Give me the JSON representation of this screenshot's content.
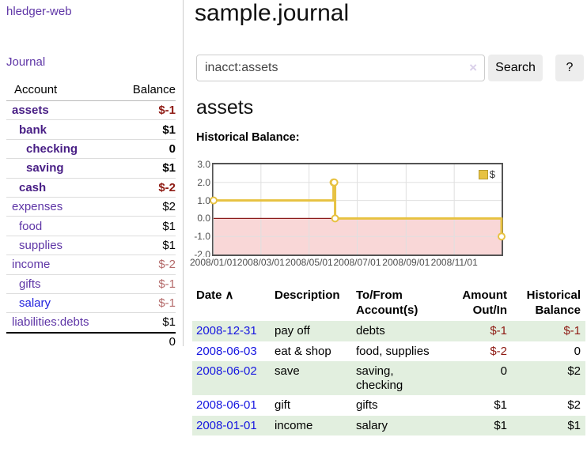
{
  "app_title": "hledger-web",
  "sidebar": {
    "journal_link": "Journal",
    "accounts": {
      "headers": {
        "account": "Account",
        "balance": "Balance"
      },
      "rows": [
        {
          "name": "assets",
          "balance": "$-1",
          "indent": 0,
          "bold": true,
          "value_class": "neg"
        },
        {
          "name": "bank",
          "balance": "$1",
          "indent": 1,
          "bold": true,
          "value_class": "pos"
        },
        {
          "name": "checking",
          "balance": "0",
          "indent": 2,
          "bold": true,
          "value_class": "pos"
        },
        {
          "name": "saving",
          "balance": "$1",
          "indent": 2,
          "bold": true,
          "value_class": "pos"
        },
        {
          "name": "cash",
          "balance": "$-2",
          "indent": 1,
          "bold": true,
          "value_class": "neg"
        },
        {
          "name": "expenses",
          "balance": "$2",
          "indent": 0,
          "bold": false,
          "value_class": "pos"
        },
        {
          "name": "food",
          "balance": "$1",
          "indent": 1,
          "bold": false,
          "value_class": "pos"
        },
        {
          "name": "supplies",
          "balance": "$1",
          "indent": 1,
          "bold": false,
          "value_class": "pos"
        },
        {
          "name": "income",
          "balance": "$-2",
          "indent": 0,
          "bold": false,
          "value_class": "rose"
        },
        {
          "name": "gifts",
          "balance": "$-1",
          "indent": 1,
          "bold": false,
          "value_class": "rose"
        },
        {
          "name": "salary",
          "balance": "$-1",
          "indent": 1,
          "bold": false,
          "value_class": "rose",
          "name_class": "blue"
        },
        {
          "name": "liabilities:debts",
          "balance": "$1",
          "indent": 0,
          "bold": false,
          "value_class": "pos"
        }
      ],
      "total": "0"
    }
  },
  "main": {
    "title": "sample.journal",
    "search": {
      "value": "inacct:assets",
      "clear_icon": "×",
      "search_button": "Search",
      "help_button": "?"
    },
    "account_heading": "assets",
    "chart_heading": "Historical Balance:"
  },
  "chart_data": {
    "type": "line",
    "step": true,
    "title": "Historical Balance",
    "series": [
      {
        "name": "$",
        "color": "#e7c242",
        "points": [
          {
            "date": "2008-01-01",
            "value": 1
          },
          {
            "date": "2008-06-01",
            "value": 2
          },
          {
            "date": "2008-06-02",
            "value": 2
          },
          {
            "date": "2008-06-03",
            "value": 0
          },
          {
            "date": "2008-12-31",
            "value": -1
          }
        ]
      }
    ],
    "x_range": [
      "2008-01-01",
      "2008-12-31"
    ],
    "ylim": [
      -2,
      3
    ],
    "yticks": [
      {
        "label": "3.0",
        "value": 3
      },
      {
        "label": "2.0",
        "value": 2
      },
      {
        "label": "1.0",
        "value": 1
      },
      {
        "label": "0.0",
        "value": 0
      },
      {
        "label": "-1.0",
        "value": -1
      },
      {
        "label": "-2.0",
        "value": -2
      }
    ],
    "xticks": [
      "2008/01/01",
      "2008/03/01",
      "2008/05/01",
      "2008/07/01",
      "2008/09/01",
      "2008/11/01"
    ],
    "grid": true,
    "legend": {
      "label": "$",
      "position": "top-right",
      "swatch_color": "#e7c242",
      "swatch_border": "#b89b2e"
    },
    "negative_region_color": "#f9d7d7",
    "zero_line_color": "#8b1a1a",
    "gridline_color": "#e0e0e0",
    "marker": {
      "fill": "#ffffff",
      "stroke": "#e7c242"
    }
  },
  "transactions": {
    "headers": [
      "Date",
      "Description",
      "To/From Account(s)",
      "Amount Out/In",
      "Historical Balance"
    ],
    "sort_indicator": "∧",
    "rows": [
      {
        "date": "2008-12-31",
        "description": "pay off",
        "accounts": "debts",
        "amount": "$-1",
        "balance": "$-1",
        "amount_negative": true,
        "balance_negative": true,
        "shaded": true
      },
      {
        "date": "2008-06-03",
        "description": "eat & shop",
        "accounts": "food, supplies",
        "amount": "$-2",
        "balance": "0",
        "amount_negative": true,
        "balance_negative": false,
        "shaded": false
      },
      {
        "date": "2008-06-02",
        "description": "save",
        "accounts": "saving, checking",
        "amount": "0",
        "balance": "$2",
        "amount_negative": false,
        "balance_negative": false,
        "shaded": true
      },
      {
        "date": "2008-06-01",
        "description": "gift",
        "accounts": "gifts",
        "amount": "$1",
        "balance": "$2",
        "amount_negative": false,
        "balance_negative": false,
        "shaded": false
      },
      {
        "date": "2008-01-01",
        "description": "income",
        "accounts": "salary",
        "amount": "$1",
        "balance": "$1",
        "amount_negative": false,
        "balance_negative": false,
        "shaded": true
      }
    ]
  },
  "colors": {
    "link_purple": "#5e35a6",
    "bold_purple": "#481e85",
    "link_blue": "#2222dd",
    "date_blue": "#1616e0",
    "negative_red": "#8e1a13",
    "rose": "#b46a6a",
    "row_green": "#e2efdf",
    "button_bg": "#ededed"
  }
}
